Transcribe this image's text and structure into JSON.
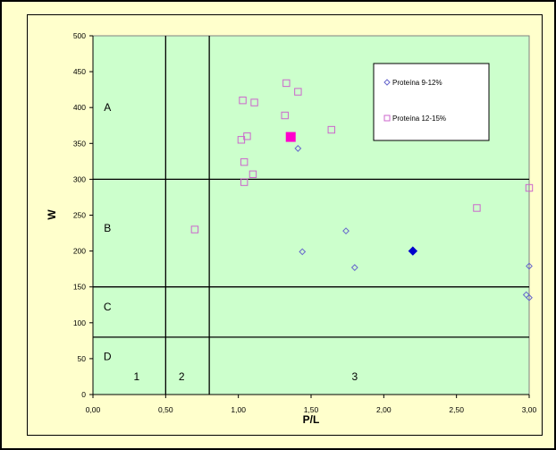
{
  "chart_data": {
    "type": "scatter",
    "xlabel": "P/L",
    "ylabel": "W",
    "xlim": [
      0,
      3
    ],
    "ylim": [
      0,
      500
    ],
    "x_ticks": [
      "0,00",
      "0,50",
      "1,00",
      "1,50",
      "2,00",
      "2,50",
      "3,00"
    ],
    "x_tick_values": [
      0,
      0.5,
      1,
      1.5,
      2,
      2.5,
      3
    ],
    "y_ticks": [
      "0",
      "50",
      "100",
      "150",
      "200",
      "250",
      "300",
      "350",
      "400",
      "450",
      "500"
    ],
    "y_tick_values": [
      0,
      50,
      100,
      150,
      200,
      250,
      300,
      350,
      400,
      450,
      500
    ],
    "plot_background": "#ccffcc",
    "frame_background": "#ffffcc",
    "grid": false,
    "legend_position": "top-right",
    "reference_lines": {
      "vertical": [
        0.5,
        0.8
      ],
      "horizontal": [
        80,
        150,
        300
      ]
    },
    "zone_labels": [
      {
        "text": "A",
        "x": 0.1,
        "y": 400
      },
      {
        "text": "B",
        "x": 0.1,
        "y": 232
      },
      {
        "text": "C",
        "x": 0.1,
        "y": 122
      },
      {
        "text": "D",
        "x": 0.1,
        "y": 53
      },
      {
        "text": "1",
        "x": 0.3,
        "y": 25
      },
      {
        "text": "2",
        "x": 0.61,
        "y": 25
      },
      {
        "text": "3",
        "x": 1.8,
        "y": 25
      }
    ],
    "series": [
      {
        "name": "Proteína 9-12%",
        "marker": "diamond",
        "color": "#6666cc",
        "points": [
          [
            1.41,
            343
          ],
          [
            1.44,
            199
          ],
          [
            1.74,
            228
          ],
          [
            1.8,
            177
          ],
          [
            2.98,
            139
          ],
          [
            3.0,
            135
          ],
          [
            3.0,
            179
          ]
        ],
        "highlight": {
          "x": 2.2,
          "y": 200,
          "color": "#0000cc"
        }
      },
      {
        "name": "Proteína 12-15%",
        "marker": "square",
        "color": "#cc66cc",
        "points": [
          [
            0.7,
            230
          ],
          [
            1.02,
            355
          ],
          [
            1.03,
            410
          ],
          [
            1.04,
            324
          ],
          [
            1.04,
            296
          ],
          [
            1.06,
            360
          ],
          [
            1.1,
            307
          ],
          [
            1.11,
            407
          ],
          [
            1.32,
            389
          ],
          [
            1.33,
            434
          ],
          [
            1.41,
            422
          ],
          [
            1.64,
            369
          ],
          [
            2.64,
            260
          ],
          [
            3.0,
            288
          ]
        ],
        "highlight": {
          "x": 1.36,
          "y": 359,
          "color": "#ff00cc"
        }
      }
    ]
  }
}
